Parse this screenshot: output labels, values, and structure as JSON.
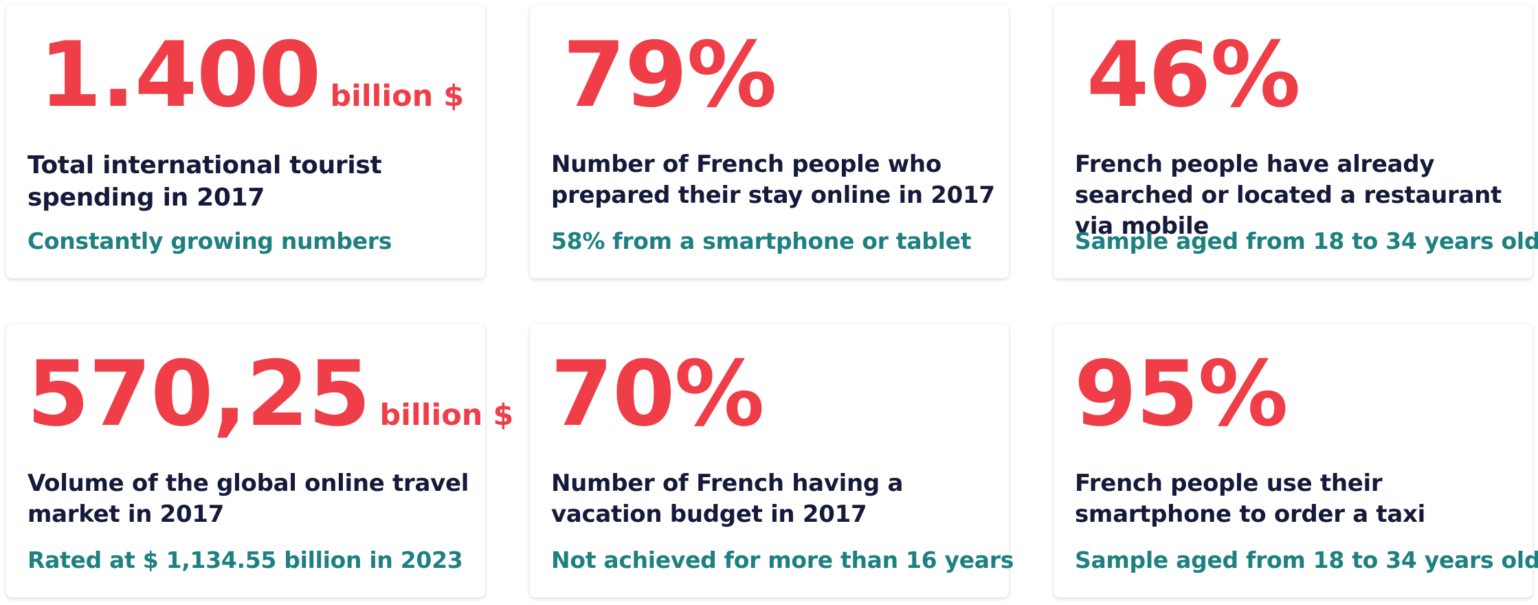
{
  "cards": [
    {
      "value": "1.400",
      "unit": "billion $",
      "label": "Total international tourist spending in 2017",
      "note": "Constantly growing numbers"
    },
    {
      "value": "79%",
      "unit": "",
      "label": "Number of French people who prepared their stay online in 2017",
      "note": "58% from a smartphone or tablet"
    },
    {
      "value": "46%",
      "unit": "",
      "label": "French people have already searched or located a restaurant via mobile",
      "note": "Sample aged from 18 to 34 years old"
    },
    {
      "value": "570,25",
      "unit": "billion $",
      "label": "Volume of the global online travel market in 2017",
      "note": "Rated at $ 1,134.55 billion in 2023"
    },
    {
      "value": "70%",
      "unit": "",
      "label": "Number of French having a vacation budget in 2017",
      "note": "Not achieved for more than 16 years"
    },
    {
      "value": "95%",
      "unit": "",
      "label": "French people use their smartphone to order a taxi",
      "note": "Sample aged from 18 to 34 years old"
    }
  ],
  "colors": {
    "number": "#ef3e48",
    "label": "#161a3a",
    "note": "#1e8080",
    "card_background": "#ffffff"
  }
}
